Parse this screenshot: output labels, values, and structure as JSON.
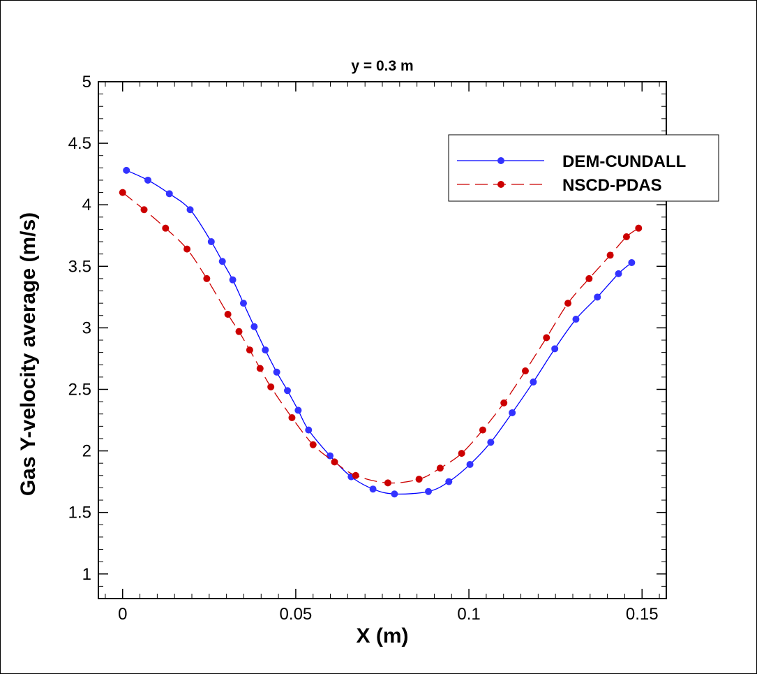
{
  "chart_data": {
    "type": "line",
    "title": "y = 0.3 m",
    "xlabel": "X (m)",
    "ylabel": "Gas Y-velocity average (m/s)",
    "xlim": [
      -0.007,
      0.157
    ],
    "ylim": [
      0.8,
      5.0
    ],
    "xticks": [
      0,
      0.05,
      0.1,
      0.15
    ],
    "xtick_labels": [
      "0",
      "0.05",
      "0.1",
      "0.15"
    ],
    "yticks": [
      1,
      1.5,
      2,
      2.5,
      3,
      3.5,
      4,
      4.5,
      5
    ],
    "ytick_labels": [
      "1",
      "1.5",
      "2",
      "2.5",
      "3",
      "3.5",
      "4",
      "4.5",
      "5"
    ],
    "grid": false,
    "legend_position": "top-right",
    "series": [
      {
        "name": "DEM-CUNDALL",
        "color": "#0000ff",
        "marker_color": "#3333ff",
        "line_style": "solid",
        "marker": "circle",
        "x": [
          0.0011,
          0.0073,
          0.0135,
          0.0195,
          0.0256,
          0.0288,
          0.0318,
          0.0349,
          0.038,
          0.0412,
          0.0445,
          0.0476,
          0.0507,
          0.0537,
          0.0599,
          0.066,
          0.0723,
          0.0785,
          0.0883,
          0.0942,
          0.1003,
          0.1063,
          0.1125,
          0.1186,
          0.1248,
          0.1309,
          0.1371,
          0.1432,
          0.147
        ],
        "y": [
          4.28,
          4.2,
          4.09,
          3.96,
          3.7,
          3.54,
          3.39,
          3.2,
          3.01,
          2.82,
          2.64,
          2.49,
          2.33,
          2.17,
          1.96,
          1.79,
          1.69,
          1.65,
          1.67,
          1.75,
          1.89,
          2.07,
          2.31,
          2.56,
          2.83,
          3.07,
          3.25,
          3.44,
          3.53
        ]
      },
      {
        "name": "NSCD-PDAS",
        "color": "#cc0000",
        "marker_color": "#cc0000",
        "line_style": "dashed",
        "marker": "circle",
        "x": [
          0.0,
          0.0062,
          0.0124,
          0.0186,
          0.0243,
          0.0304,
          0.0336,
          0.0367,
          0.0397,
          0.0428,
          0.0489,
          0.055,
          0.0612,
          0.0673,
          0.0766,
          0.0856,
          0.0917,
          0.0979,
          0.104,
          0.1101,
          0.1163,
          0.1224,
          0.1286,
          0.1347,
          0.1408,
          0.1455,
          0.149
        ],
        "y": [
          4.1,
          3.96,
          3.81,
          3.64,
          3.4,
          3.11,
          2.97,
          2.82,
          2.67,
          2.52,
          2.27,
          2.05,
          1.91,
          1.8,
          1.74,
          1.77,
          1.86,
          1.98,
          2.17,
          2.39,
          2.65,
          2.92,
          3.2,
          3.4,
          3.59,
          3.74,
          3.81
        ]
      }
    ]
  }
}
